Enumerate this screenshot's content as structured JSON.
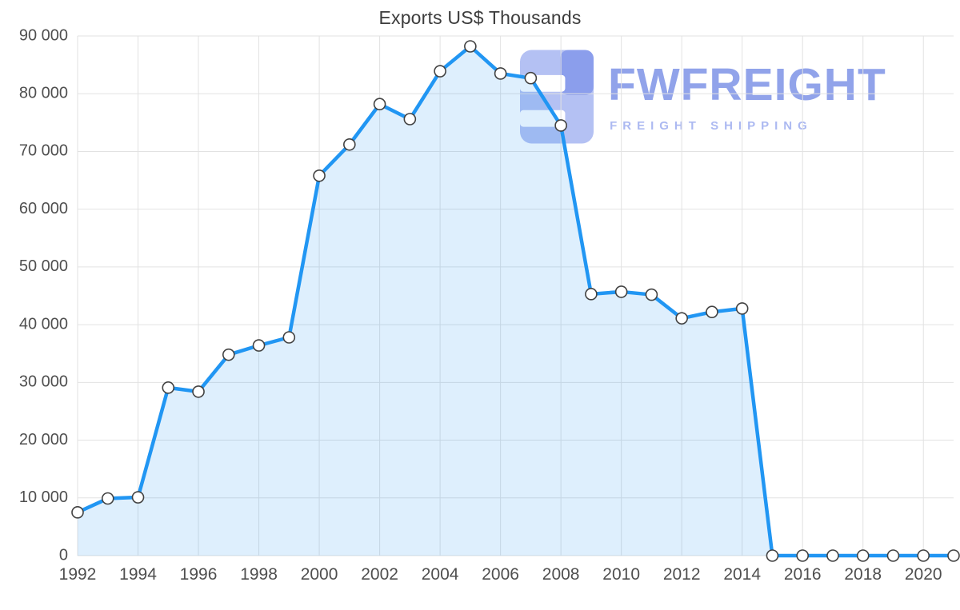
{
  "chart": {
    "colors": {
      "line": "#2196F3",
      "fill": "rgba(33,150,243,0.15)",
      "marker_fill": "#ffffff",
      "marker_stroke": "#424242",
      "grid": "#e2e2e2",
      "axis_text": "#4f4f4f",
      "title_text": "#3c3c3c"
    }
  },
  "watermark": {
    "brand": "FWFREIGHT",
    "tagline": "FREIGHT SHIPPING",
    "icon_light_color": "#b0bef3",
    "icon_dark_color": "#8599ec"
  },
  "chart_data": {
    "type": "area",
    "title": "Exports US$ Thousands",
    "xlabel": "",
    "ylabel": "",
    "legend": "none",
    "grid": true,
    "ylim": [
      0,
      90000
    ],
    "x": [
      1992,
      1993,
      1994,
      1995,
      1996,
      1997,
      1998,
      1999,
      2000,
      2001,
      2002,
      2003,
      2004,
      2005,
      2006,
      2007,
      2008,
      2009,
      2010,
      2011,
      2012,
      2013,
      2014,
      2015,
      2016,
      2017,
      2018,
      2019,
      2020,
      2021
    ],
    "values": [
      7500,
      9900,
      10100,
      29100,
      28400,
      34800,
      36400,
      37800,
      65800,
      71200,
      78200,
      75600,
      83900,
      88200,
      83500,
      82700,
      74500,
      45300,
      45700,
      45200,
      41100,
      42200,
      42800,
      0,
      0,
      0,
      0,
      0,
      0,
      0
    ],
    "y_ticks": [
      {
        "value": 0,
        "label": "0"
      },
      {
        "value": 10000,
        "label": "10 000"
      },
      {
        "value": 20000,
        "label": "20 000"
      },
      {
        "value": 30000,
        "label": "30 000"
      },
      {
        "value": 40000,
        "label": "40 000"
      },
      {
        "value": 50000,
        "label": "50 000"
      },
      {
        "value": 60000,
        "label": "60 000"
      },
      {
        "value": 70000,
        "label": "70 000"
      },
      {
        "value": 80000,
        "label": "80 000"
      },
      {
        "value": 90000,
        "label": "90 000"
      }
    ],
    "x_ticks": [
      {
        "value": 1992,
        "label": "1992"
      },
      {
        "value": 1994,
        "label": "1994"
      },
      {
        "value": 1996,
        "label": "1996"
      },
      {
        "value": 1998,
        "label": "1998"
      },
      {
        "value": 2000,
        "label": "2000"
      },
      {
        "value": 2002,
        "label": "2002"
      },
      {
        "value": 2004,
        "label": "2004"
      },
      {
        "value": 2006,
        "label": "2006"
      },
      {
        "value": 2008,
        "label": "2008"
      },
      {
        "value": 2010,
        "label": "2010"
      },
      {
        "value": 2012,
        "label": "2012"
      },
      {
        "value": 2014,
        "label": "2014"
      },
      {
        "value": 2016,
        "label": "2016"
      },
      {
        "value": 2018,
        "label": "2018"
      },
      {
        "value": 2020,
        "label": "2020"
      }
    ]
  }
}
